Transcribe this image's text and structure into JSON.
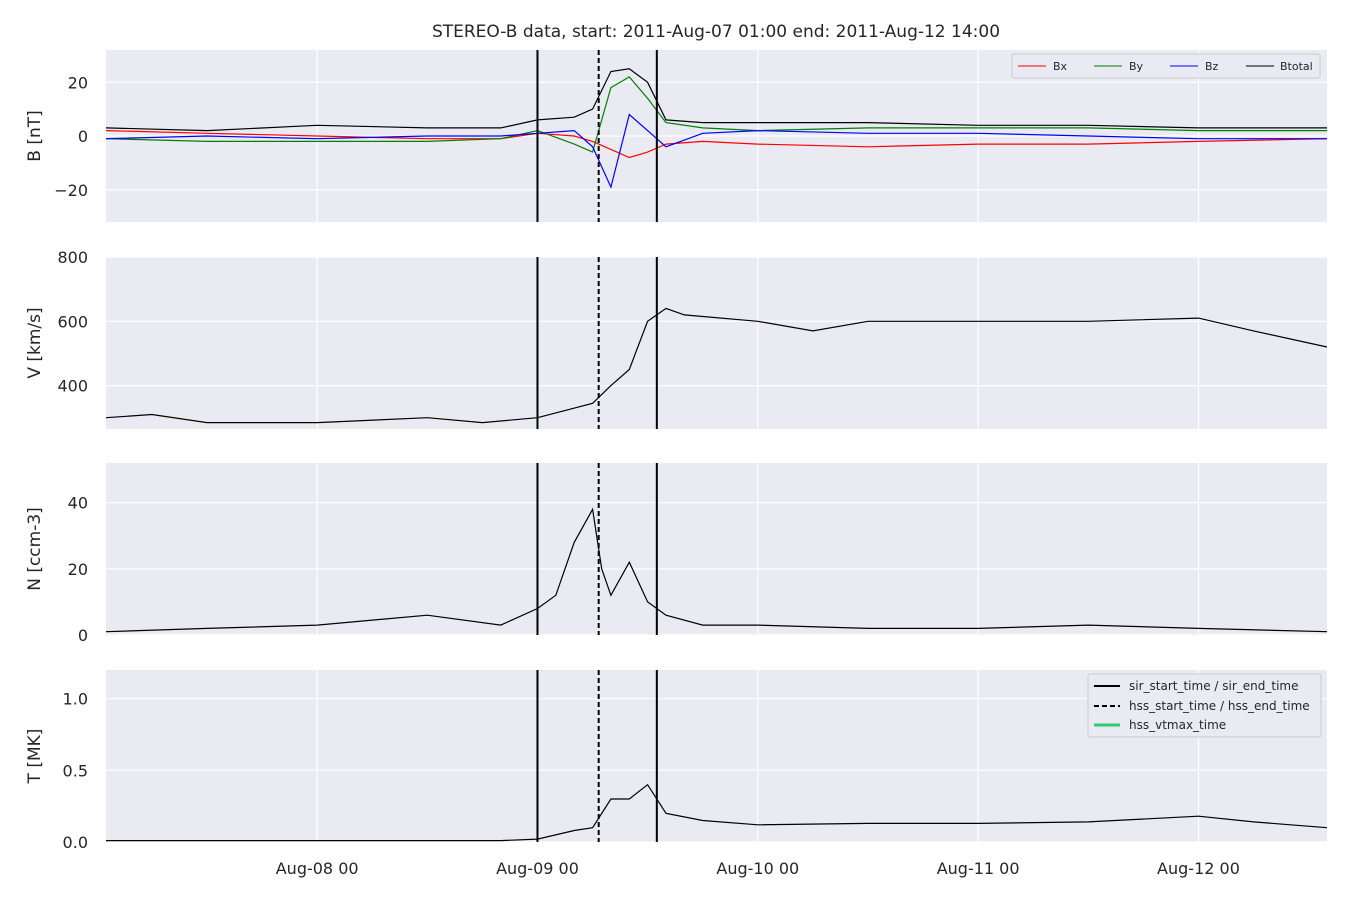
{
  "figure": {
    "title": "STEREO-B data, start: 2011-Aug-07 01:00  end: 2011-Aug-12 14:00"
  },
  "colors": {
    "panel_bg": "#eaeaf2",
    "grid": "#ffffff",
    "bx": "#ff0000",
    "by": "#008000",
    "bz": "#0000ff",
    "btotal": "#000000",
    "vtmax": "#2ecc71"
  },
  "chart_data": [
    {
      "type": "line",
      "ylabel": "B [nT]",
      "ylim": [
        -32,
        32
      ],
      "yticks": [
        20,
        0,
        -20
      ],
      "ytick_labels": [
        "20",
        "0",
        "−20"
      ],
      "grid": true,
      "legend_position": "top-right",
      "series": [
        {
          "name": "Bx",
          "color": "#ff0000",
          "x": [
            "2011-08-07 01:00",
            "2011-08-07 12:00",
            "2011-08-08 00:00",
            "2011-08-08 12:00",
            "2011-08-08 20:00",
            "2011-08-09 00:00",
            "2011-08-09 04:00",
            "2011-08-09 06:00",
            "2011-08-09 08:00",
            "2011-08-09 10:00",
            "2011-08-09 12:00",
            "2011-08-09 14:00",
            "2011-08-09 18:00",
            "2011-08-10 00:00",
            "2011-08-10 12:00",
            "2011-08-11 00:00",
            "2011-08-11 12:00",
            "2011-08-12 00:00",
            "2011-08-12 14:00"
          ],
          "values": [
            2,
            1,
            0,
            -1,
            -1,
            1,
            0,
            -2,
            -5,
            -8,
            -6,
            -3,
            -2,
            -3,
            -4,
            -3,
            -3,
            -2,
            -1
          ]
        },
        {
          "name": "By",
          "color": "#008000",
          "x": [
            "2011-08-07 01:00",
            "2011-08-07 12:00",
            "2011-08-08 00:00",
            "2011-08-08 12:00",
            "2011-08-08 20:00",
            "2011-08-09 00:00",
            "2011-08-09 04:00",
            "2011-08-09 06:00",
            "2011-08-09 08:00",
            "2011-08-09 10:00",
            "2011-08-09 12:00",
            "2011-08-09 14:00",
            "2011-08-09 18:00",
            "2011-08-10 00:00",
            "2011-08-10 12:00",
            "2011-08-11 00:00",
            "2011-08-11 12:00",
            "2011-08-12 00:00",
            "2011-08-12 14:00"
          ],
          "values": [
            -1,
            -2,
            -2,
            -2,
            -1,
            2,
            -3,
            -6,
            18,
            22,
            14,
            5,
            3,
            2,
            3,
            3,
            3,
            2,
            2
          ]
        },
        {
          "name": "Bz",
          "color": "#0000ff",
          "x": [
            "2011-08-07 01:00",
            "2011-08-07 12:00",
            "2011-08-08 00:00",
            "2011-08-08 12:00",
            "2011-08-08 20:00",
            "2011-08-09 00:00",
            "2011-08-09 04:00",
            "2011-08-09 06:00",
            "2011-08-09 08:00",
            "2011-08-09 10:00",
            "2011-08-09 12:00",
            "2011-08-09 14:00",
            "2011-08-09 18:00",
            "2011-08-10 00:00",
            "2011-08-10 12:00",
            "2011-08-11 00:00",
            "2011-08-11 12:00",
            "2011-08-12 00:00",
            "2011-08-12 14:00"
          ],
          "values": [
            -1,
            0,
            -1,
            0,
            0,
            1,
            2,
            -4,
            -19,
            8,
            2,
            -4,
            1,
            2,
            1,
            1,
            0,
            -1,
            -1
          ]
        },
        {
          "name": "Btotal",
          "color": "#000000",
          "x": [
            "2011-08-07 01:00",
            "2011-08-07 12:00",
            "2011-08-08 00:00",
            "2011-08-08 12:00",
            "2011-08-08 20:00",
            "2011-08-09 00:00",
            "2011-08-09 04:00",
            "2011-08-09 06:00",
            "2011-08-09 08:00",
            "2011-08-09 10:00",
            "2011-08-09 12:00",
            "2011-08-09 14:00",
            "2011-08-09 18:00",
            "2011-08-10 00:00",
            "2011-08-10 12:00",
            "2011-08-11 00:00",
            "2011-08-11 12:00",
            "2011-08-12 00:00",
            "2011-08-12 14:00"
          ],
          "values": [
            3,
            2,
            4,
            3,
            3,
            6,
            7,
            10,
            24,
            25,
            20,
            6,
            5,
            5,
            5,
            4,
            4,
            3,
            3
          ]
        }
      ]
    },
    {
      "type": "line",
      "ylabel": "V [km/s]",
      "ylim": [
        265,
        800
      ],
      "yticks": [
        800,
        600,
        400
      ],
      "ytick_labels": [
        "800",
        "600",
        "400"
      ],
      "grid": true,
      "series": [
        {
          "color": "#000000",
          "x": [
            "2011-08-07 01:00",
            "2011-08-07 06:00",
            "2011-08-07 12:00",
            "2011-08-08 00:00",
            "2011-08-08 12:00",
            "2011-08-08 18:00",
            "2011-08-09 00:00",
            "2011-08-09 06:00",
            "2011-08-09 08:00",
            "2011-08-09 10:00",
            "2011-08-09 12:00",
            "2011-08-09 14:00",
            "2011-08-09 16:00",
            "2011-08-10 00:00",
            "2011-08-10 06:00",
            "2011-08-10 12:00",
            "2011-08-10 18:00",
            "2011-08-11 00:00",
            "2011-08-11 12:00",
            "2011-08-12 00:00",
            "2011-08-12 06:00",
            "2011-08-12 14:00"
          ],
          "values": [
            300,
            310,
            285,
            285,
            300,
            285,
            300,
            345,
            400,
            450,
            600,
            640,
            620,
            600,
            570,
            600,
            600,
            600,
            600,
            610,
            570,
            520
          ]
        }
      ]
    },
    {
      "type": "line",
      "ylabel": "N [ccm-3]",
      "ylim": [
        0,
        52
      ],
      "yticks": [
        40,
        20,
        0
      ],
      "ytick_labels": [
        "40",
        "20",
        "0"
      ],
      "grid": true,
      "series": [
        {
          "color": "#000000",
          "x": [
            "2011-08-07 01:00",
            "2011-08-07 12:00",
            "2011-08-08 00:00",
            "2011-08-08 12:00",
            "2011-08-08 20:00",
            "2011-08-09 00:00",
            "2011-08-09 02:00",
            "2011-08-09 04:00",
            "2011-08-09 06:00",
            "2011-08-09 07:00",
            "2011-08-09 08:00",
            "2011-08-09 10:00",
            "2011-08-09 12:00",
            "2011-08-09 14:00",
            "2011-08-09 18:00",
            "2011-08-10 00:00",
            "2011-08-10 12:00",
            "2011-08-11 00:00",
            "2011-08-11 12:00",
            "2011-08-12 00:00",
            "2011-08-12 14:00"
          ],
          "values": [
            1,
            2,
            3,
            6,
            3,
            8,
            12,
            28,
            38,
            20,
            12,
            22,
            10,
            6,
            3,
            3,
            2,
            2,
            3,
            2,
            1
          ]
        }
      ]
    },
    {
      "type": "line",
      "ylabel": "T [MK]",
      "ylim": [
        0,
        1.2
      ],
      "yticks": [
        1.0,
        0.5,
        0.0
      ],
      "ytick_labels": [
        "1.0",
        "0.5",
        "0.0"
      ],
      "grid": true,
      "legend_position": "top-right",
      "series": [
        {
          "color": "#000000",
          "x": [
            "2011-08-07 01:00",
            "2011-08-08 00:00",
            "2011-08-08 20:00",
            "2011-08-09 00:00",
            "2011-08-09 04:00",
            "2011-08-09 06:00",
            "2011-08-09 08:00",
            "2011-08-09 10:00",
            "2011-08-09 12:00",
            "2011-08-09 14:00",
            "2011-08-09 18:00",
            "2011-08-10 00:00",
            "2011-08-10 12:00",
            "2011-08-11 00:00",
            "2011-08-11 12:00",
            "2011-08-12 00:00",
            "2011-08-12 06:00",
            "2011-08-12 14:00"
          ],
          "values": [
            0.01,
            0.01,
            0.01,
            0.02,
            0.08,
            0.1,
            0.3,
            0.3,
            0.4,
            0.2,
            0.15,
            0.12,
            0.13,
            0.13,
            0.14,
            0.18,
            0.14,
            0.1
          ]
        }
      ]
    }
  ],
  "x_axis": {
    "range": [
      "2011-08-07 01:00",
      "2011-08-12 14:00"
    ],
    "ticks": [
      "2011-08-08 00:00",
      "2011-08-09 00:00",
      "2011-08-10 00:00",
      "2011-08-11 00:00",
      "2011-08-12 00:00"
    ],
    "tick_labels": [
      "Aug-08 00",
      "Aug-09 00",
      "Aug-10 00",
      "Aug-11 00",
      "Aug-12 00"
    ]
  },
  "event_markers": {
    "sir_start_time": "2011-08-09 00:00",
    "hss_start_time": "2011-08-09 06:40",
    "sir_end_time": "2011-08-09 13:00"
  },
  "legends": {
    "b_panel": [
      "Bx",
      "By",
      "Bz",
      "Btotal"
    ],
    "t_panel": [
      "sir_start_time / sir_end_time",
      "hss_start_time / hss_end_time",
      "hss_vtmax_time"
    ]
  }
}
